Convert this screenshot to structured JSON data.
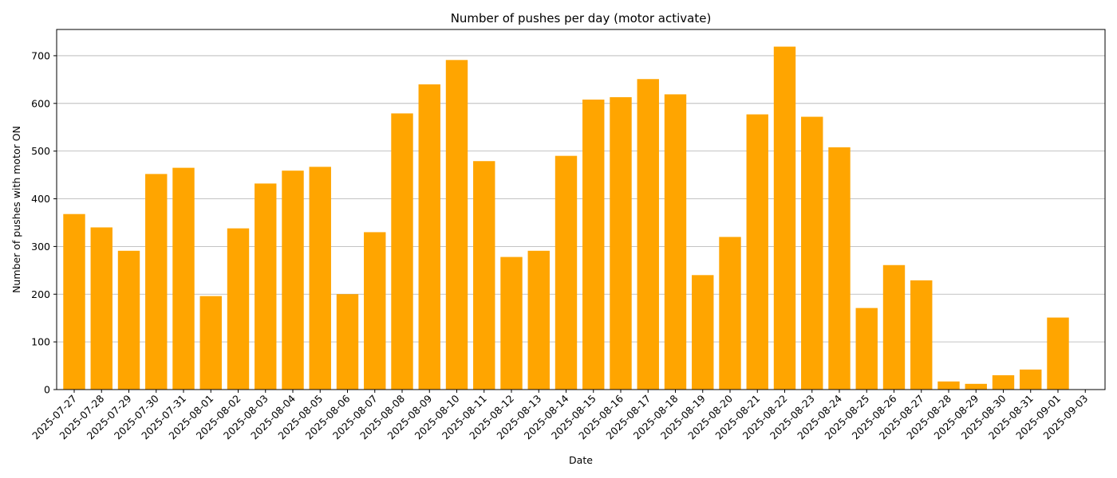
{
  "chart_data": {
    "type": "bar",
    "title": "Number of pushes per day  (motor activate)",
    "xlabel": "Date",
    "ylabel": "Number of pushes with motor ON",
    "ylim": [
      0,
      755
    ],
    "yticks": [
      0,
      100,
      200,
      300,
      400,
      500,
      600,
      700
    ],
    "grid": "y-major",
    "bar_color": "#FFA500",
    "categories": [
      "2025-07-27",
      "2025-07-28",
      "2025-07-29",
      "2025-07-30",
      "2025-07-31",
      "2025-08-01",
      "2025-08-02",
      "2025-08-03",
      "2025-08-04",
      "2025-08-05",
      "2025-08-06",
      "2025-08-07",
      "2025-08-08",
      "2025-08-09",
      "2025-08-10",
      "2025-08-11",
      "2025-08-12",
      "2025-08-13",
      "2025-08-14",
      "2025-08-15",
      "2025-08-16",
      "2025-08-17",
      "2025-08-18",
      "2025-08-19",
      "2025-08-20",
      "2025-08-21",
      "2025-08-22",
      "2025-08-23",
      "2025-08-24",
      "2025-08-25",
      "2025-08-26",
      "2025-08-27",
      "2025-08-28",
      "2025-08-29",
      "2025-08-30",
      "2025-08-31",
      "2025-09-01",
      "2025-09-03"
    ],
    "values": [
      368,
      340,
      291,
      452,
      465,
      196,
      338,
      432,
      459,
      467,
      200,
      330,
      579,
      640,
      691,
      479,
      278,
      291,
      490,
      608,
      613,
      651,
      619,
      240,
      320,
      577,
      719,
      572,
      508,
      171,
      261,
      229,
      17,
      12,
      30,
      42,
      151,
      0
    ]
  }
}
